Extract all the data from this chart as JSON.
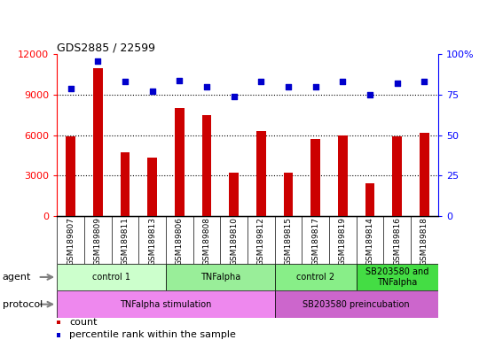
{
  "title": "GDS2885 / 22599",
  "samples": [
    "GSM189807",
    "GSM189809",
    "GSM189811",
    "GSM189813",
    "GSM189806",
    "GSM189808",
    "GSM189810",
    "GSM189812",
    "GSM189815",
    "GSM189817",
    "GSM189819",
    "GSM189814",
    "GSM189816",
    "GSM189818"
  ],
  "counts": [
    5900,
    11000,
    4700,
    4300,
    8000,
    7500,
    3200,
    6300,
    3200,
    5700,
    6000,
    2400,
    5900,
    6200
  ],
  "percentile_ranks": [
    79,
    96,
    83,
    77,
    84,
    80,
    74,
    83,
    80,
    80,
    83,
    75,
    82,
    83
  ],
  "ylim_left": [
    0,
    12000
  ],
  "ylim_right": [
    0,
    100
  ],
  "yticks_left": [
    0,
    3000,
    6000,
    9000,
    12000
  ],
  "yticks_right": [
    0,
    25,
    50,
    75,
    100
  ],
  "bar_color": "#cc0000",
  "dot_color": "#0000cc",
  "agent_groups": [
    {
      "label": "control 1",
      "start": 0,
      "end": 4,
      "color": "#ccffcc"
    },
    {
      "label": "TNFalpha",
      "start": 4,
      "end": 8,
      "color": "#99ee99"
    },
    {
      "label": "control 2",
      "start": 8,
      "end": 11,
      "color": "#88ee88"
    },
    {
      "label": "SB203580 and\nTNFalpha",
      "start": 11,
      "end": 14,
      "color": "#44dd44"
    }
  ],
  "protocol_groups": [
    {
      "label": "TNFalpha stimulation",
      "start": 0,
      "end": 8,
      "color": "#ee88ee"
    },
    {
      "label": "SB203580 preincubation",
      "start": 8,
      "end": 14,
      "color": "#cc66cc"
    }
  ],
  "agent_label": "agent",
  "protocol_label": "protocol",
  "legend_count_label": "count",
  "legend_pct_label": "percentile rank within the sample",
  "xlabels_bg": "#cccccc",
  "background_color": "#ffffff"
}
